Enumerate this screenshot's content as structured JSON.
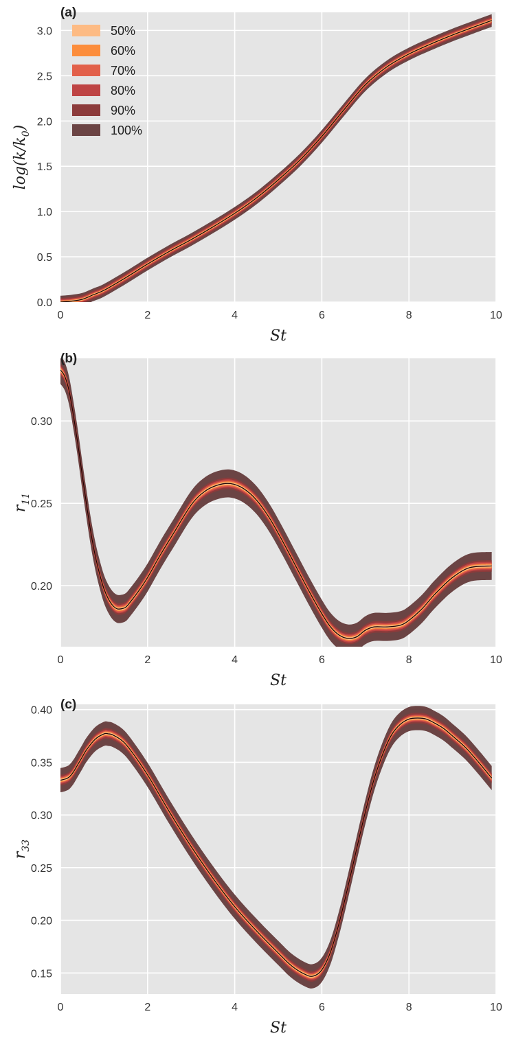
{
  "colors": {
    "background": "#e5e5e5",
    "grid": "#ffffff",
    "median_line": "#1a0505"
  },
  "chart_data": [
    {
      "type": "area",
      "panel_label": "(a)",
      "xlabel": "St",
      "ylabel_main": "log(k/k",
      "ylabel_sub": "0",
      "ylabel_close": ")",
      "xlim": [
        0,
        10
      ],
      "ylim": [
        0,
        3.2
      ],
      "xticks": [
        0,
        2,
        4,
        6,
        8,
        10
      ],
      "yticks": [
        0.0,
        0.5,
        1.0,
        1.5,
        2.0,
        2.5,
        3.0
      ],
      "ytick_labels": [
        "0.0",
        "0.5",
        "1.0",
        "1.5",
        "2.0",
        "2.5",
        "3.0"
      ],
      "grid": true,
      "legend": {
        "placement": "top-left",
        "entries": [
          {
            "label": "50%",
            "color": "#fdbb84"
          },
          {
            "label": "60%",
            "color": "#fc8d3c"
          },
          {
            "label": "70%",
            "color": "#e2604a"
          },
          {
            "label": "80%",
            "color": "#be4444"
          },
          {
            "label": "90%",
            "color": "#8c3b3b"
          },
          {
            "label": "100%",
            "color": "#6b4444"
          }
        ]
      },
      "x": [
        0,
        0.25,
        0.5,
        0.75,
        1.0,
        1.5,
        2.0,
        2.5,
        3.0,
        3.5,
        4.0,
        4.5,
        5.0,
        5.5,
        6.0,
        6.5,
        7.0,
        7.5,
        8.0,
        8.5,
        9.0,
        9.5,
        9.9
      ],
      "median": [
        0,
        0.01,
        0.03,
        0.08,
        0.13,
        0.27,
        0.42,
        0.56,
        0.69,
        0.83,
        0.98,
        1.15,
        1.35,
        1.57,
        1.83,
        2.12,
        2.4,
        2.6,
        2.74,
        2.85,
        2.95,
        3.04,
        3.11
      ],
      "band_halfwidths": [
        0.01,
        0.015,
        0.02,
        0.03,
        0.045,
        0.07
      ]
    },
    {
      "type": "area",
      "panel_label": "(b)",
      "xlabel": "St",
      "ylabel_main": "r",
      "ylabel_sub": "11",
      "ylabel_close": "",
      "xlim": [
        0,
        10
      ],
      "ylim": [
        0.163,
        0.338
      ],
      "xticks": [
        0,
        2,
        4,
        6,
        8,
        10
      ],
      "yticks": [
        0.2,
        0.25,
        0.3
      ],
      "ytick_labels": [
        "0.20",
        "0.25",
        "0.30"
      ],
      "grid": true,
      "x": [
        0,
        0.1,
        0.2,
        0.3,
        0.4,
        0.5,
        0.6,
        0.7,
        0.8,
        0.9,
        1.0,
        1.1,
        1.2,
        1.3,
        1.4,
        1.5,
        1.6,
        1.8,
        2.0,
        2.3,
        2.6,
        3.0,
        3.3,
        3.6,
        3.9,
        4.2,
        4.5,
        4.8,
        5.1,
        5.4,
        5.7,
        6.0,
        6.2,
        6.4,
        6.6,
        6.8,
        7.0,
        7.2,
        7.5,
        7.8,
        8.0,
        8.3,
        8.6,
        9.0,
        9.4,
        9.9
      ],
      "median": [
        0.331,
        0.327,
        0.318,
        0.303,
        0.286,
        0.267,
        0.249,
        0.232,
        0.218,
        0.207,
        0.198,
        0.192,
        0.188,
        0.186,
        0.186,
        0.187,
        0.19,
        0.197,
        0.205,
        0.219,
        0.232,
        0.249,
        0.257,
        0.261,
        0.262,
        0.259,
        0.252,
        0.241,
        0.227,
        0.212,
        0.197,
        0.183,
        0.175,
        0.17,
        0.168,
        0.169,
        0.173,
        0.175,
        0.175,
        0.176,
        0.179,
        0.186,
        0.195,
        0.205,
        0.211,
        0.212
      ],
      "band_halfwidths": [
        0.0008,
        0.0012,
        0.0018,
        0.0025,
        0.0035,
        0.0085
      ]
    },
    {
      "type": "area",
      "panel_label": "(c)",
      "xlabel": "St",
      "ylabel_main": "r",
      "ylabel_sub": "33",
      "ylabel_close": "",
      "xlim": [
        0,
        10
      ],
      "ylim": [
        0.13,
        0.405
      ],
      "xticks": [
        0,
        2,
        4,
        6,
        8,
        10
      ],
      "yticks": [
        0.15,
        0.2,
        0.25,
        0.3,
        0.35,
        0.4
      ],
      "ytick_labels": [
        "0.15",
        "0.20",
        "0.25",
        "0.30",
        "0.35",
        "0.40"
      ],
      "grid": true,
      "x": [
        0,
        0.1,
        0.2,
        0.3,
        0.4,
        0.5,
        0.6,
        0.8,
        1.0,
        1.1,
        1.2,
        1.4,
        1.6,
        2.0,
        2.5,
        3.0,
        3.5,
        4.0,
        4.5,
        5.0,
        5.3,
        5.6,
        5.8,
        6.0,
        6.2,
        6.4,
        6.6,
        6.8,
        7.0,
        7.2,
        7.4,
        7.6,
        7.8,
        8.0,
        8.2,
        8.4,
        8.6,
        8.8,
        9.0,
        9.3,
        9.6,
        9.9
      ],
      "median": [
        0.333,
        0.334,
        0.336,
        0.341,
        0.348,
        0.355,
        0.362,
        0.372,
        0.377,
        0.377,
        0.376,
        0.371,
        0.362,
        0.338,
        0.303,
        0.27,
        0.24,
        0.213,
        0.19,
        0.169,
        0.157,
        0.149,
        0.147,
        0.153,
        0.17,
        0.198,
        0.232,
        0.268,
        0.303,
        0.334,
        0.358,
        0.376,
        0.386,
        0.391,
        0.392,
        0.391,
        0.387,
        0.382,
        0.375,
        0.364,
        0.35,
        0.335
      ],
      "band_halfwidths": [
        0.0012,
        0.0018,
        0.0025,
        0.0035,
        0.005,
        0.0115
      ]
    }
  ]
}
